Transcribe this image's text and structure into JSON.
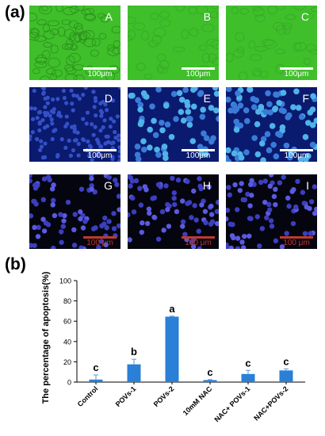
{
  "labels": {
    "a": "(a)",
    "b": "(b)"
  },
  "micrographs": [
    {
      "letter": "A",
      "scale": "100μm",
      "style": "green"
    },
    {
      "letter": "B",
      "scale": "100μm",
      "style": "green"
    },
    {
      "letter": "C",
      "scale": "100μm",
      "style": "green"
    },
    {
      "letter": "D",
      "scale": "100μm",
      "style": "blue"
    },
    {
      "letter": "E",
      "scale": "100μm",
      "style": "blue"
    },
    {
      "letter": "F",
      "scale": "100μm",
      "style": "blue"
    },
    {
      "letter": "G",
      "scale": "100 μm",
      "style": "dark"
    },
    {
      "letter": "H",
      "scale": "100 μm",
      "style": "dark"
    },
    {
      "letter": "I",
      "scale": "100 μm",
      "style": "dark"
    }
  ],
  "chart_data": {
    "type": "bar",
    "categories": [
      "Control",
      "POVs-1",
      "POVs-2",
      "10mM NAC",
      "NAC+ POVs-1",
      "NAC+POVs-2"
    ],
    "values": [
      2.5,
      17.5,
      64.5,
      2.0,
      8.0,
      11.5
    ],
    "errors": [
      4.5,
      5.0,
      0.5,
      0.5,
      3.5,
      1.5
    ],
    "significance": [
      "c",
      "b",
      "a",
      "c",
      "c",
      "c"
    ],
    "ylabel": "The percentage of  apoptosis(%)",
    "xlabel": "",
    "ylim": [
      0,
      100
    ],
    "yticks": [
      0,
      20,
      40,
      60,
      80,
      100
    ],
    "bar_color": "#2a7fd6",
    "error_color": "#6fa8dc"
  }
}
